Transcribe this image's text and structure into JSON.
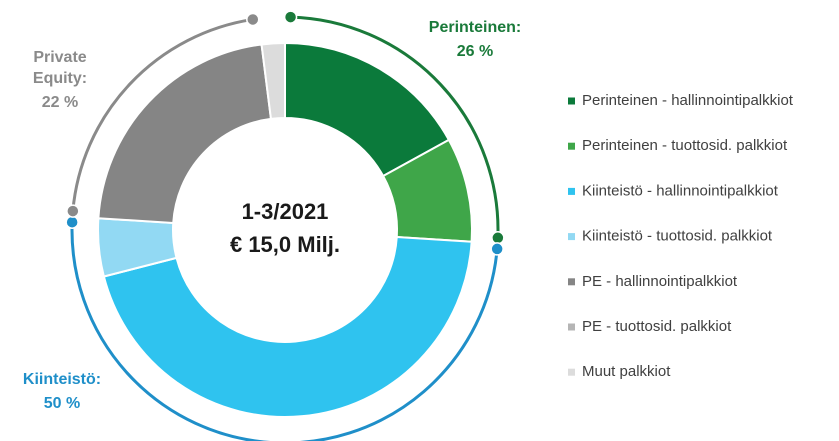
{
  "chart_data": {
    "type": "donut",
    "center_text": [
      "1-3/2021",
      "€ 15,0 Milj."
    ],
    "categories": [
      "Perinteinen - hallinnointipalkkiot",
      "Perinteinen - tuottosid. palkkiot",
      "Kiinteistö - hallinnointipalkkiot",
      "Kiinteistö - tuottosid. palkkiot",
      "PE - hallinnointipalkkiot",
      "PE - tuottosid. palkkiot",
      "Muut palkkiot"
    ],
    "values": [
      17,
      9,
      45,
      5,
      22,
      0,
      2
    ],
    "colors": [
      "#0b7a3b",
      "#3fa649",
      "#2fc3ef",
      "#92d9f3",
      "#858585",
      "#b5b5b5",
      "#dcdcdc"
    ],
    "groups": [
      {
        "label": [
          "Perinteinen:"
        ],
        "value": 26,
        "value_label": "26 %",
        "color": "#1a7a3a"
      },
      {
        "label": [
          "Kiinteistö:"
        ],
        "value": 50,
        "value_label": "50 %",
        "color": "#1f8fc9"
      },
      {
        "label": [
          "Private",
          "Equity:"
        ],
        "value": 22,
        "value_label": "22 %",
        "color": "#8a8a8a"
      }
    ],
    "legend": "right"
  }
}
